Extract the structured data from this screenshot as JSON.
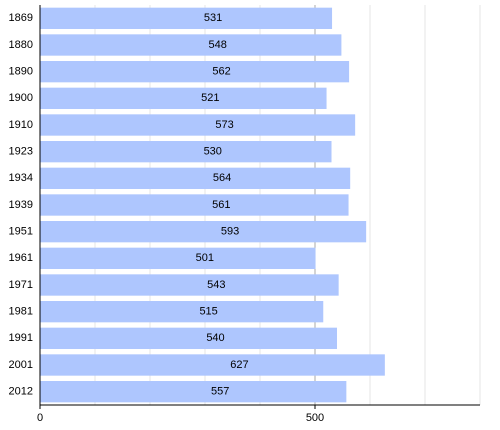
{
  "chart_data": {
    "type": "bar",
    "orientation": "horizontal",
    "categories": [
      "1869",
      "1880",
      "1890",
      "1900",
      "1910",
      "1923",
      "1934",
      "1939",
      "1951",
      "1961",
      "1971",
      "1981",
      "1991",
      "2001",
      "2012"
    ],
    "values": [
      531,
      548,
      562,
      521,
      573,
      530,
      564,
      561,
      593,
      501,
      543,
      515,
      540,
      627,
      557
    ],
    "color": "#aec6fe",
    "xlim": [
      0,
      800
    ],
    "xticks": [
      0,
      500
    ],
    "minor_xticks": [
      100,
      200,
      300,
      400,
      600,
      700,
      800
    ],
    "grid": true
  }
}
